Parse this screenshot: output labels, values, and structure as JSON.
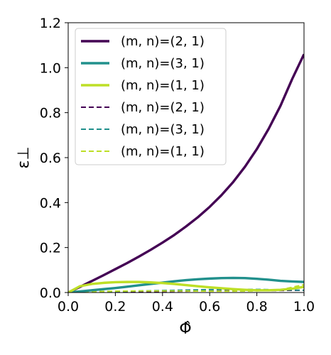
{
  "chart_data": {
    "type": "line",
    "xlabel": "Φ̂",
    "ylabel": "ε⊥",
    "xlim": [
      0.0,
      1.0
    ],
    "ylim": [
      0.0,
      1.2
    ],
    "xticks": [
      "0.0",
      "0.2",
      "0.4",
      "0.6",
      "0.8",
      "1.0"
    ],
    "yticks": [
      "0.0",
      "0.2",
      "0.4",
      "0.6",
      "0.8",
      "1.0",
      "1.2"
    ],
    "grid": false,
    "legend_position": "top-left",
    "series": [
      {
        "name": "(m, n)=(2, 1)",
        "style": "solid",
        "color": "#440154",
        "x": [
          0.0,
          0.05,
          0.1,
          0.15,
          0.2,
          0.25,
          0.3,
          0.35,
          0.4,
          0.45,
          0.5,
          0.55,
          0.6,
          0.65,
          0.7,
          0.75,
          0.8,
          0.85,
          0.9,
          0.95,
          1.0
        ],
        "y": [
          0.0,
          0.025,
          0.051,
          0.077,
          0.104,
          0.131,
          0.16,
          0.19,
          0.222,
          0.256,
          0.294,
          0.335,
          0.381,
          0.433,
          0.492,
          0.56,
          0.638,
          0.728,
          0.83,
          0.95,
          1.06
        ]
      },
      {
        "name": "(m, n)=(3, 1)",
        "style": "solid",
        "color": "#21908c",
        "x": [
          0.0,
          0.05,
          0.1,
          0.15,
          0.2,
          0.25,
          0.3,
          0.35,
          0.4,
          0.45,
          0.5,
          0.55,
          0.6,
          0.65,
          0.7,
          0.75,
          0.8,
          0.85,
          0.9,
          0.95,
          1.0
        ],
        "y": [
          0.0,
          0.005,
          0.01,
          0.015,
          0.02,
          0.026,
          0.032,
          0.038,
          0.044,
          0.05,
          0.055,
          0.059,
          0.062,
          0.064,
          0.065,
          0.064,
          0.061,
          0.057,
          0.052,
          0.049,
          0.047
        ]
      },
      {
        "name": "(m, n)=(1, 1)",
        "style": "solid",
        "color": "#bddf26",
        "x": [
          0.0,
          0.05,
          0.1,
          0.15,
          0.2,
          0.25,
          0.3,
          0.35,
          0.4,
          0.45,
          0.5,
          0.55,
          0.6,
          0.65,
          0.7,
          0.75,
          0.8,
          0.85,
          0.9,
          0.95,
          1.0
        ],
        "y": [
          0.0,
          0.028,
          0.038,
          0.043,
          0.046,
          0.047,
          0.047,
          0.045,
          0.042,
          0.038,
          0.033,
          0.028,
          0.023,
          0.019,
          0.015,
          0.012,
          0.01,
          0.01,
          0.012,
          0.017,
          0.025
        ]
      },
      {
        "name": "(m, n)=(2, 1)",
        "style": "dashed",
        "color": "#440154",
        "x": [
          0.0,
          0.1,
          0.2,
          0.3,
          0.4,
          0.5,
          0.6,
          0.7,
          0.8,
          0.9,
          1.0
        ],
        "y": [
          0.0,
          0.002,
          0.003,
          0.004,
          0.005,
          0.006,
          0.007,
          0.008,
          0.008,
          0.009,
          0.01
        ]
      },
      {
        "name": "(m, n)=(3, 1)",
        "style": "dashed",
        "color": "#21908c",
        "x": [
          0.0,
          0.1,
          0.2,
          0.3,
          0.4,
          0.5,
          0.6,
          0.7,
          0.8,
          0.9,
          1.0
        ],
        "y": [
          0.0,
          0.003,
          0.005,
          0.007,
          0.009,
          0.011,
          0.013,
          0.014,
          0.014,
          0.012,
          0.01
        ]
      },
      {
        "name": "(m, n)=(1, 1)",
        "style": "dashed",
        "color": "#bddf26",
        "x": [
          0.0,
          0.1,
          0.2,
          0.3,
          0.4,
          0.5,
          0.6,
          0.7,
          0.8,
          0.9,
          1.0
        ],
        "y": [
          0.0,
          0.004,
          0.006,
          0.007,
          0.007,
          0.007,
          0.006,
          0.006,
          0.007,
          0.012,
          0.035
        ]
      }
    ]
  }
}
